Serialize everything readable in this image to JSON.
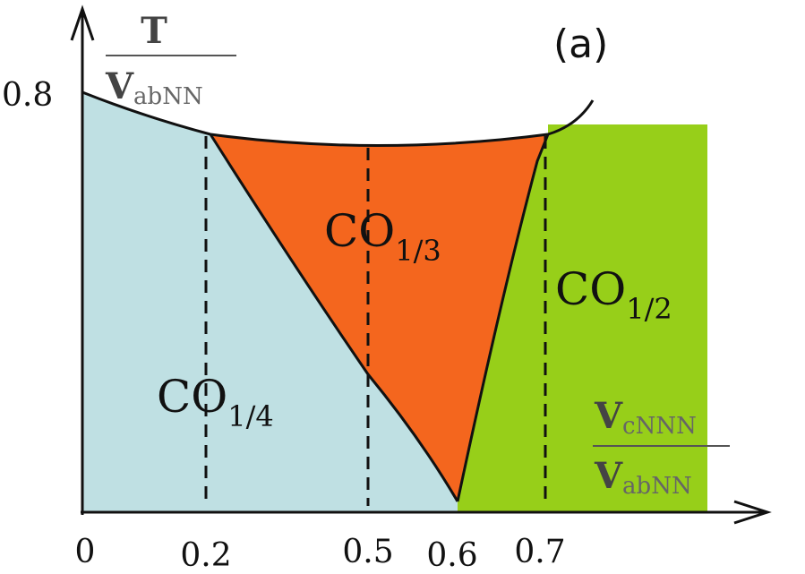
{
  "panel_label": "(a)",
  "y_axis": {
    "numerator": "T",
    "denominator_main": "V",
    "denominator_sub": "abNN",
    "tick": "0.8"
  },
  "x_axis": {
    "numerator_main": "V",
    "numerator_sub": "cNNN",
    "denominator_main": "V",
    "denominator_sub": "abNN",
    "ticks": [
      "0",
      "0.2",
      "0.5",
      "0.6",
      "0.7"
    ]
  },
  "phases": [
    {
      "main": "CO",
      "sub": "1/4",
      "color": "#bfe0e3"
    },
    {
      "main": "CO",
      "sub": "1/3",
      "color": "#f4661e"
    },
    {
      "main": "CO",
      "sub": "1/2",
      "color": "#97cf19"
    }
  ]
}
